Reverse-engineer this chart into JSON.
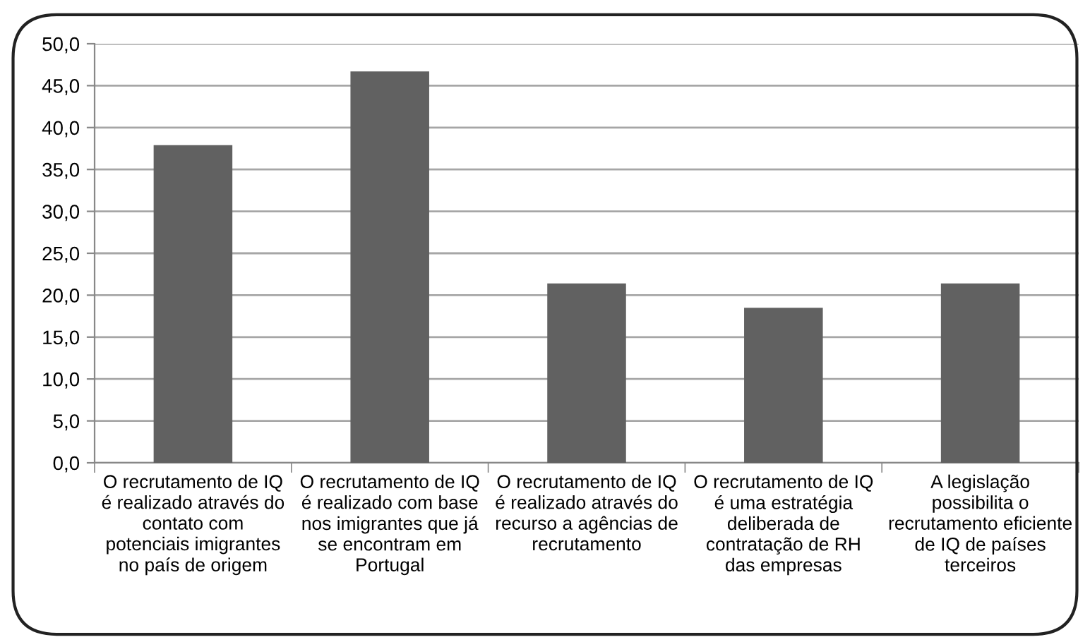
{
  "chart_data": {
    "type": "bar",
    "categories": [
      "O recrutamento de IQ\né realizado através do\ncontato com\npotenciais imigrantes\nno país de origem",
      "O recrutamento de IQ\né realizado com base\nnos imigrantes que já\nse encontram em\nPortugal",
      "O recrutamento de IQ\né realizado através do\nrecurso a agências de\nrecrutamento",
      "O recrutamento de IQ\né uma estratégia\ndeliberada de\ncontratação de RH\ndas empresas",
      "A legislação\npossibilita o\nrecrutamento eficiente\nde IQ de países\nterceiros"
    ],
    "values": [
      37.9,
      46.7,
      21.4,
      18.5,
      21.4
    ],
    "color": "#616161",
    "ylim": [
      0,
      50
    ],
    "yticks": [
      {
        "value": 0,
        "label": "0,0"
      },
      {
        "value": 5,
        "label": "5,0"
      },
      {
        "value": 10,
        "label": "10,0"
      },
      {
        "value": 15,
        "label": "15,0"
      },
      {
        "value": 20,
        "label": "20,0"
      },
      {
        "value": 25,
        "label": "25,0"
      },
      {
        "value": 30,
        "label": "30,0"
      },
      {
        "value": 35,
        "label": "35,0"
      },
      {
        "value": 40,
        "label": "40,0"
      },
      {
        "value": 45,
        "label": "45,0"
      },
      {
        "value": 50,
        "label": "50,0"
      }
    ],
    "grid": "y"
  }
}
